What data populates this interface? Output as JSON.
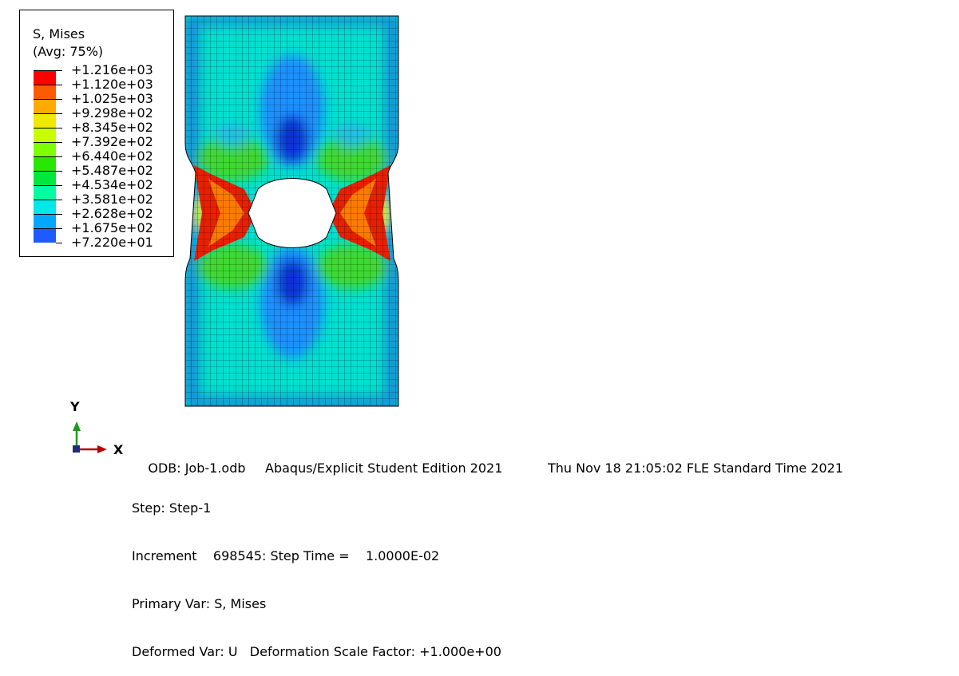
{
  "legend": {
    "title_line1": "S, Mises",
    "title_line2": "(Avg: 75%)",
    "ticks": [
      "+1.216e+03",
      "+1.120e+03",
      "+1.025e+03",
      "+9.298e+02",
      "+8.345e+02",
      "+7.392e+02",
      "+6.440e+02",
      "+5.487e+02",
      "+4.534e+02",
      "+3.581e+02",
      "+2.628e+02",
      "+1.675e+02",
      "+7.220e+01"
    ],
    "colors": [
      "#ff0000",
      "#ff5a00",
      "#ffaa00",
      "#f0e800",
      "#c8ff00",
      "#7dff00",
      "#28e800",
      "#00e83c",
      "#00ffa0",
      "#00e8e8",
      "#00a8ff",
      "#1e5aff",
      "#0000ff"
    ]
  },
  "triad": {
    "y_label": "Y",
    "x_label": "X"
  },
  "info": {
    "odb": "ODB: Job-1.odb",
    "product": "Abaqus/Explicit Student Edition 2021",
    "timestamp": "Thu Nov 18 21:05:02 FLE Standard Time 2021",
    "step": "Step: Step-1",
    "increment": "Increment    698545: Step Time =    1.0000E-02",
    "primary_var": "Primary Var: S, Mises",
    "deformed_var": "Deformed Var: U   Deformation Scale Factor: +1.000e+00"
  }
}
